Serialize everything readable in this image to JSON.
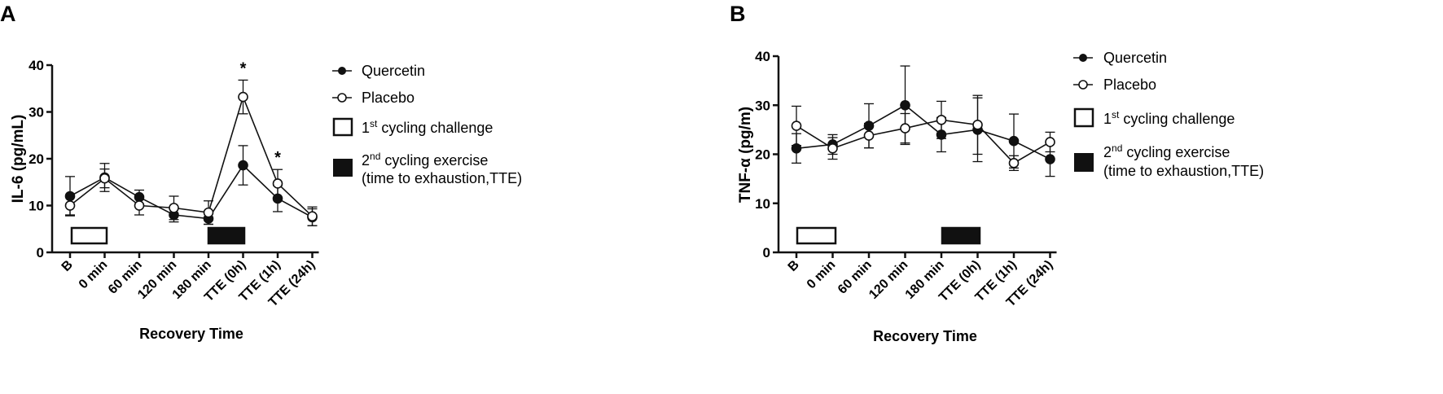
{
  "panels": [
    {
      "letter": "A",
      "chart_data": {
        "type": "line",
        "ylabel": "IL-6 (pg/mL)",
        "xlabel": "Recovery Time",
        "categories": [
          "B",
          "0 min",
          "60 min",
          "120 min",
          "180 min",
          "TTE (0h)",
          "TTE (1h)",
          "TTE (24h)"
        ],
        "ylim": [
          0,
          40
        ],
        "yticks": [
          0,
          10,
          20,
          30,
          40
        ],
        "grid": false,
        "legend_position": "right",
        "series": [
          {
            "name": "Quercetin",
            "marker": "filled-circle",
            "values": [
              12,
              16,
              11.8,
              8,
              7.2,
              18.6,
              11.5,
              7.5
            ],
            "errors": [
              4.2,
              3,
              1.5,
              1.5,
              1.2,
              4.2,
              2.8,
              1.8
            ]
          },
          {
            "name": "Placebo",
            "marker": "open-circle",
            "values": [
              10,
              15.8,
              10,
              9.5,
              8.5,
              33.2,
              14.7,
              7.7
            ],
            "errors": [
              2,
              2,
              2,
              2.5,
              2.5,
              3.6,
              3,
              2
            ]
          }
        ],
        "annotations": [
          {
            "category": "TTE (0h)",
            "text": "*"
          },
          {
            "category": "TTE (1h)",
            "text": "*"
          }
        ],
        "exercise_bars": [
          {
            "style": "open",
            "from": "B",
            "to": "0 min"
          },
          {
            "style": "filled",
            "from": "180 min",
            "to": "TTE (0h)"
          }
        ]
      }
    },
    {
      "letter": "B",
      "chart_data": {
        "type": "line",
        "ylabel": "TNF-α (pg/m)",
        "xlabel": "Recovery Time",
        "categories": [
          "B",
          "0 min",
          "60 min",
          "120 min",
          "180 min",
          "TTE (0h)",
          "TTE (1h)",
          "TTE (24h)"
        ],
        "ylim": [
          0,
          40
        ],
        "yticks": [
          0,
          10,
          20,
          30,
          40
        ],
        "grid": false,
        "legend_position": "right",
        "series": [
          {
            "name": "Quercetin",
            "marker": "filled-circle",
            "values": [
              21.2,
              22,
              25.8,
              30,
              24,
              25,
              22.7,
              19
            ],
            "errors": [
              3,
              2,
              4.5,
              8,
              3.5,
              6.5,
              5.5,
              3.5
            ]
          },
          {
            "name": "Placebo",
            "marker": "open-circle",
            "values": [
              25.8,
              21.2,
              23.8,
              25.3,
              27,
              26,
              18.2,
              22.5
            ],
            "errors": [
              4,
              2.2,
              2.5,
              3,
              3.8,
              6,
              1.5,
              2
            ]
          }
        ],
        "annotations": [],
        "exercise_bars": [
          {
            "style": "open",
            "from": "B",
            "to": "0 min"
          },
          {
            "style": "filled",
            "from": "180 min",
            "to": "TTE (0h)"
          }
        ]
      }
    }
  ],
  "legend": {
    "quercetin": "Quercetin",
    "placebo": "Placebo",
    "first_prefix": "1",
    "first_sup": "st",
    "first_rest": " cycling challenge",
    "second_prefix": "2",
    "second_sup": "nd",
    "second_rest": " cycling exercise",
    "second_line2": "(time to exhaustion,TTE)"
  }
}
